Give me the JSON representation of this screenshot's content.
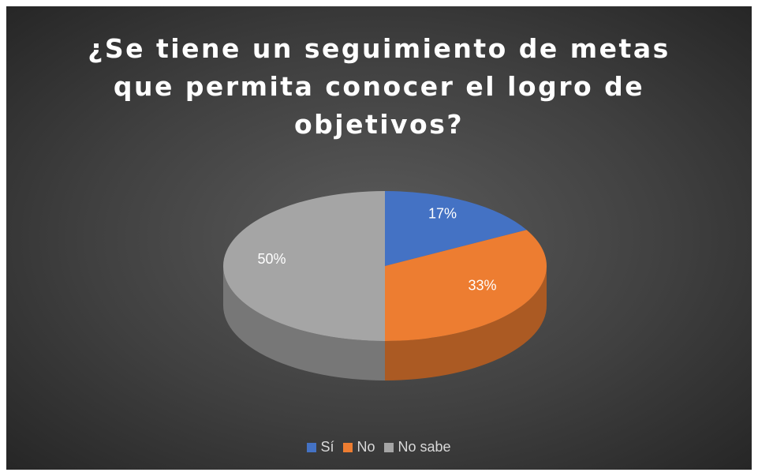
{
  "chart_data": {
    "type": "pie",
    "title": "¿Se tiene un seguimiento de metas que permita conocer el logro de objetivos?",
    "categories": [
      "Sí",
      "No",
      "No sabe"
    ],
    "values": [
      17,
      33,
      50
    ],
    "value_labels": [
      "17%",
      "33%",
      "50%"
    ],
    "colors": [
      "#4472c4",
      "#ed7d31",
      "#a5a5a5"
    ],
    "legend": "bottom"
  }
}
